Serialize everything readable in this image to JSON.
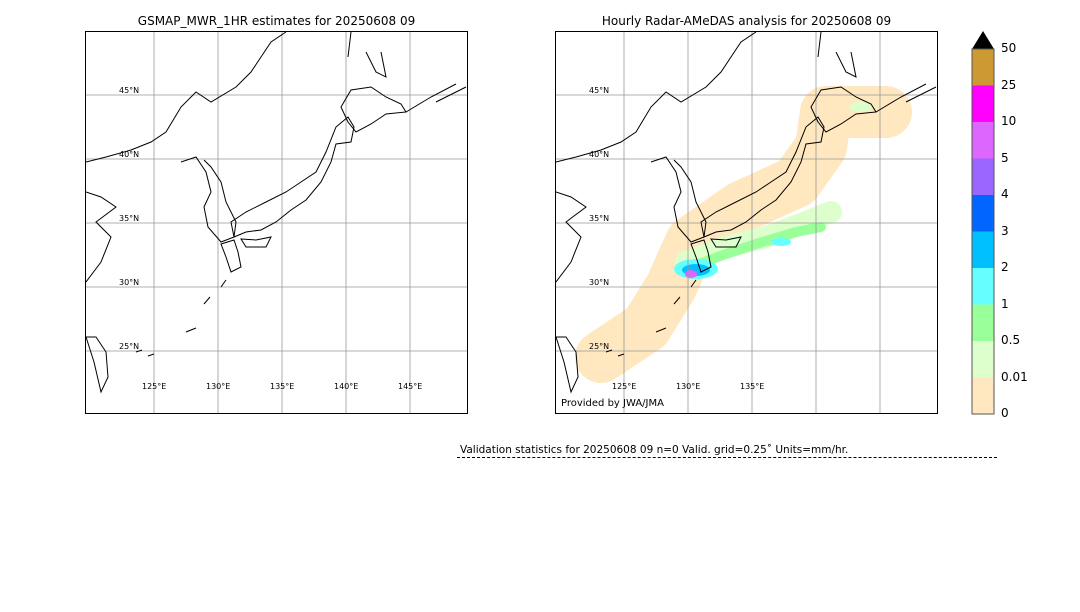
{
  "left_title": "GSMAP_MWR_1HR estimates for 20250608 09",
  "right_title": "Hourly Radar-AMeDAS analysis for 20250608 09",
  "credit": "Provided by JWA/JMA",
  "validation": "Validation statistics for 20250608 09  n=0 Valid. grid=0.25˚ Units=mm/hr.",
  "chart_data": [
    {
      "type": "map",
      "title": "GSMAP_MWR_1HR estimates for 20250608 09",
      "lat_labels": [
        "45°N",
        "40°N",
        "35°N",
        "30°N",
        "25°N"
      ],
      "lon_labels": [
        "125°E",
        "130°E",
        "135°E",
        "140°E",
        "145°E"
      ],
      "grid": true,
      "precipitation": "none"
    },
    {
      "type": "map",
      "title": "Hourly Radar-AMeDAS analysis for 20250608 09",
      "lat_labels": [
        "45°N",
        "40°N",
        "35°N",
        "30°N",
        "25°N"
      ],
      "lon_labels": [
        "125°E",
        "130°E",
        "135°E"
      ],
      "grid": true,
      "precipitation": "light rain (0–1 mm/hr) along southern Honshu and Hokkaido; heavier (2–10 mm/hr) near southern Kyushu"
    }
  ],
  "colorbar": {
    "labels": [
      "50",
      "25",
      "10",
      "5",
      "4",
      "3",
      "2",
      "1",
      "0.5",
      "0.01",
      "0"
    ],
    "colors": [
      "#cc9933",
      "#ff00ff",
      "#dd66ff",
      "#9966ff",
      "#0066ff",
      "#00bfff",
      "#66ffff",
      "#99ff99",
      "#ddffcc",
      "#ffe8c0"
    ],
    "extend_color": "#000000"
  }
}
